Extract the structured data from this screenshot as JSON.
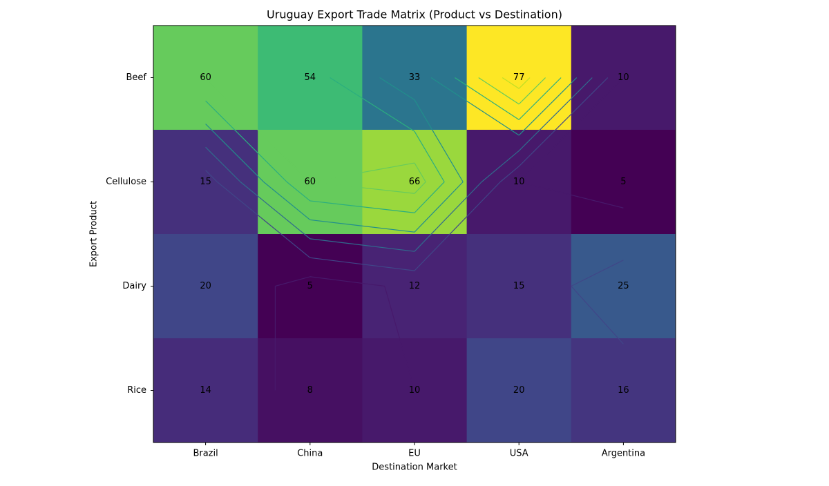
{
  "chart_data": {
    "type": "heatmap",
    "title": "Uruguay Export Trade Matrix (Product vs Destination)",
    "x_label": "Destination Market",
    "y_label": "Export Product",
    "x_categories": [
      "Brazil",
      "China",
      "EU",
      "USA",
      "Argentina"
    ],
    "y_categories": [
      "Beef",
      "Cellulose",
      "Dairy",
      "Rice"
    ],
    "values": [
      [
        60,
        54,
        33,
        77,
        10
      ],
      [
        15,
        60,
        66,
        10,
        5
      ],
      [
        20,
        5,
        12,
        15,
        25
      ],
      [
        14,
        8,
        10,
        20,
        16
      ]
    ],
    "colormap": "viridis",
    "contours": true
  }
}
